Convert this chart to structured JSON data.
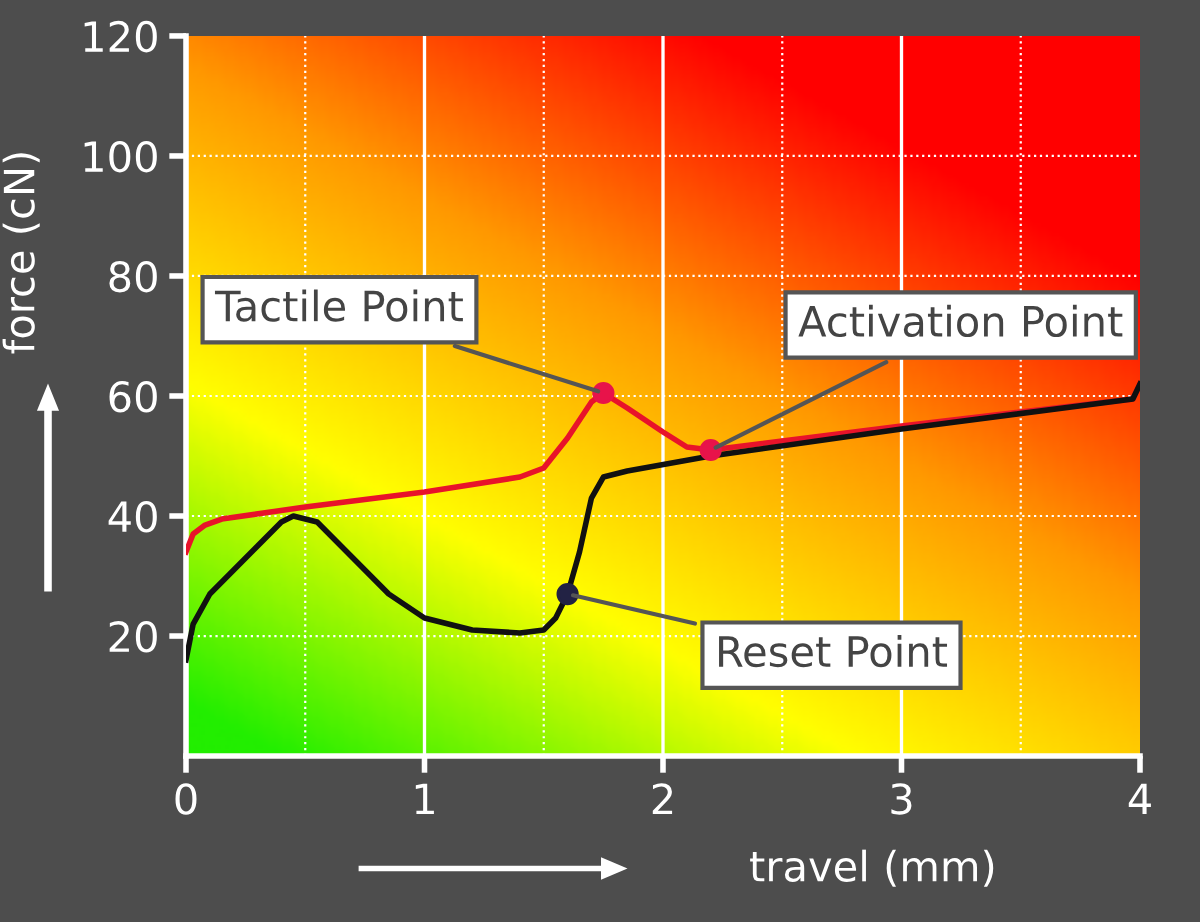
{
  "chart_data": {
    "type": "line",
    "xlabel": "travel (mm)",
    "ylabel": "force (cN)",
    "xlim": [
      0,
      4
    ],
    "ylim": [
      0,
      120
    ],
    "xticks": [
      0,
      1,
      2,
      3,
      4
    ],
    "yticks": [
      20,
      40,
      60,
      80,
      100,
      120
    ],
    "grid": true,
    "line_style": "solid",
    "marker": "none",
    "series": [
      {
        "color": "#e8132a",
        "x": [
          0,
          0.03,
          0.08,
          0.15,
          0.5,
          1.0,
          1.4,
          1.5,
          1.6,
          1.7,
          1.75,
          1.85,
          2.0,
          2.1,
          2.2,
          3.0,
          3.97,
          4.0
        ],
        "values": [
          34,
          37,
          38.5,
          39.5,
          41.5,
          44,
          46.5,
          48,
          53,
          59,
          60.5,
          58,
          54,
          51.5,
          51,
          55,
          59.5,
          62
        ]
      },
      {
        "color": "#111111",
        "x": [
          0,
          0.03,
          0.1,
          0.2,
          0.3,
          0.4,
          0.45,
          0.55,
          0.7,
          0.85,
          1.0,
          1.2,
          1.4,
          1.5,
          1.55,
          1.6,
          1.65,
          1.7,
          1.75,
          1.85,
          2.2,
          3.0,
          3.97,
          4.0
        ],
        "values": [
          16,
          22,
          27,
          31,
          35,
          39,
          40,
          39,
          33,
          27,
          23,
          21,
          20.5,
          21,
          23,
          27,
          34,
          43,
          46.5,
          47.5,
          50,
          54.5,
          59.5,
          62
        ]
      }
    ],
    "annotations": [
      {
        "text": "Tactile Point",
        "x": 1.75,
        "y": 60.5
      },
      {
        "text": "Activation Point",
        "x": 2.2,
        "y": 51
      },
      {
        "text": "Reset Point",
        "x": 1.6,
        "y": 27
      }
    ]
  }
}
